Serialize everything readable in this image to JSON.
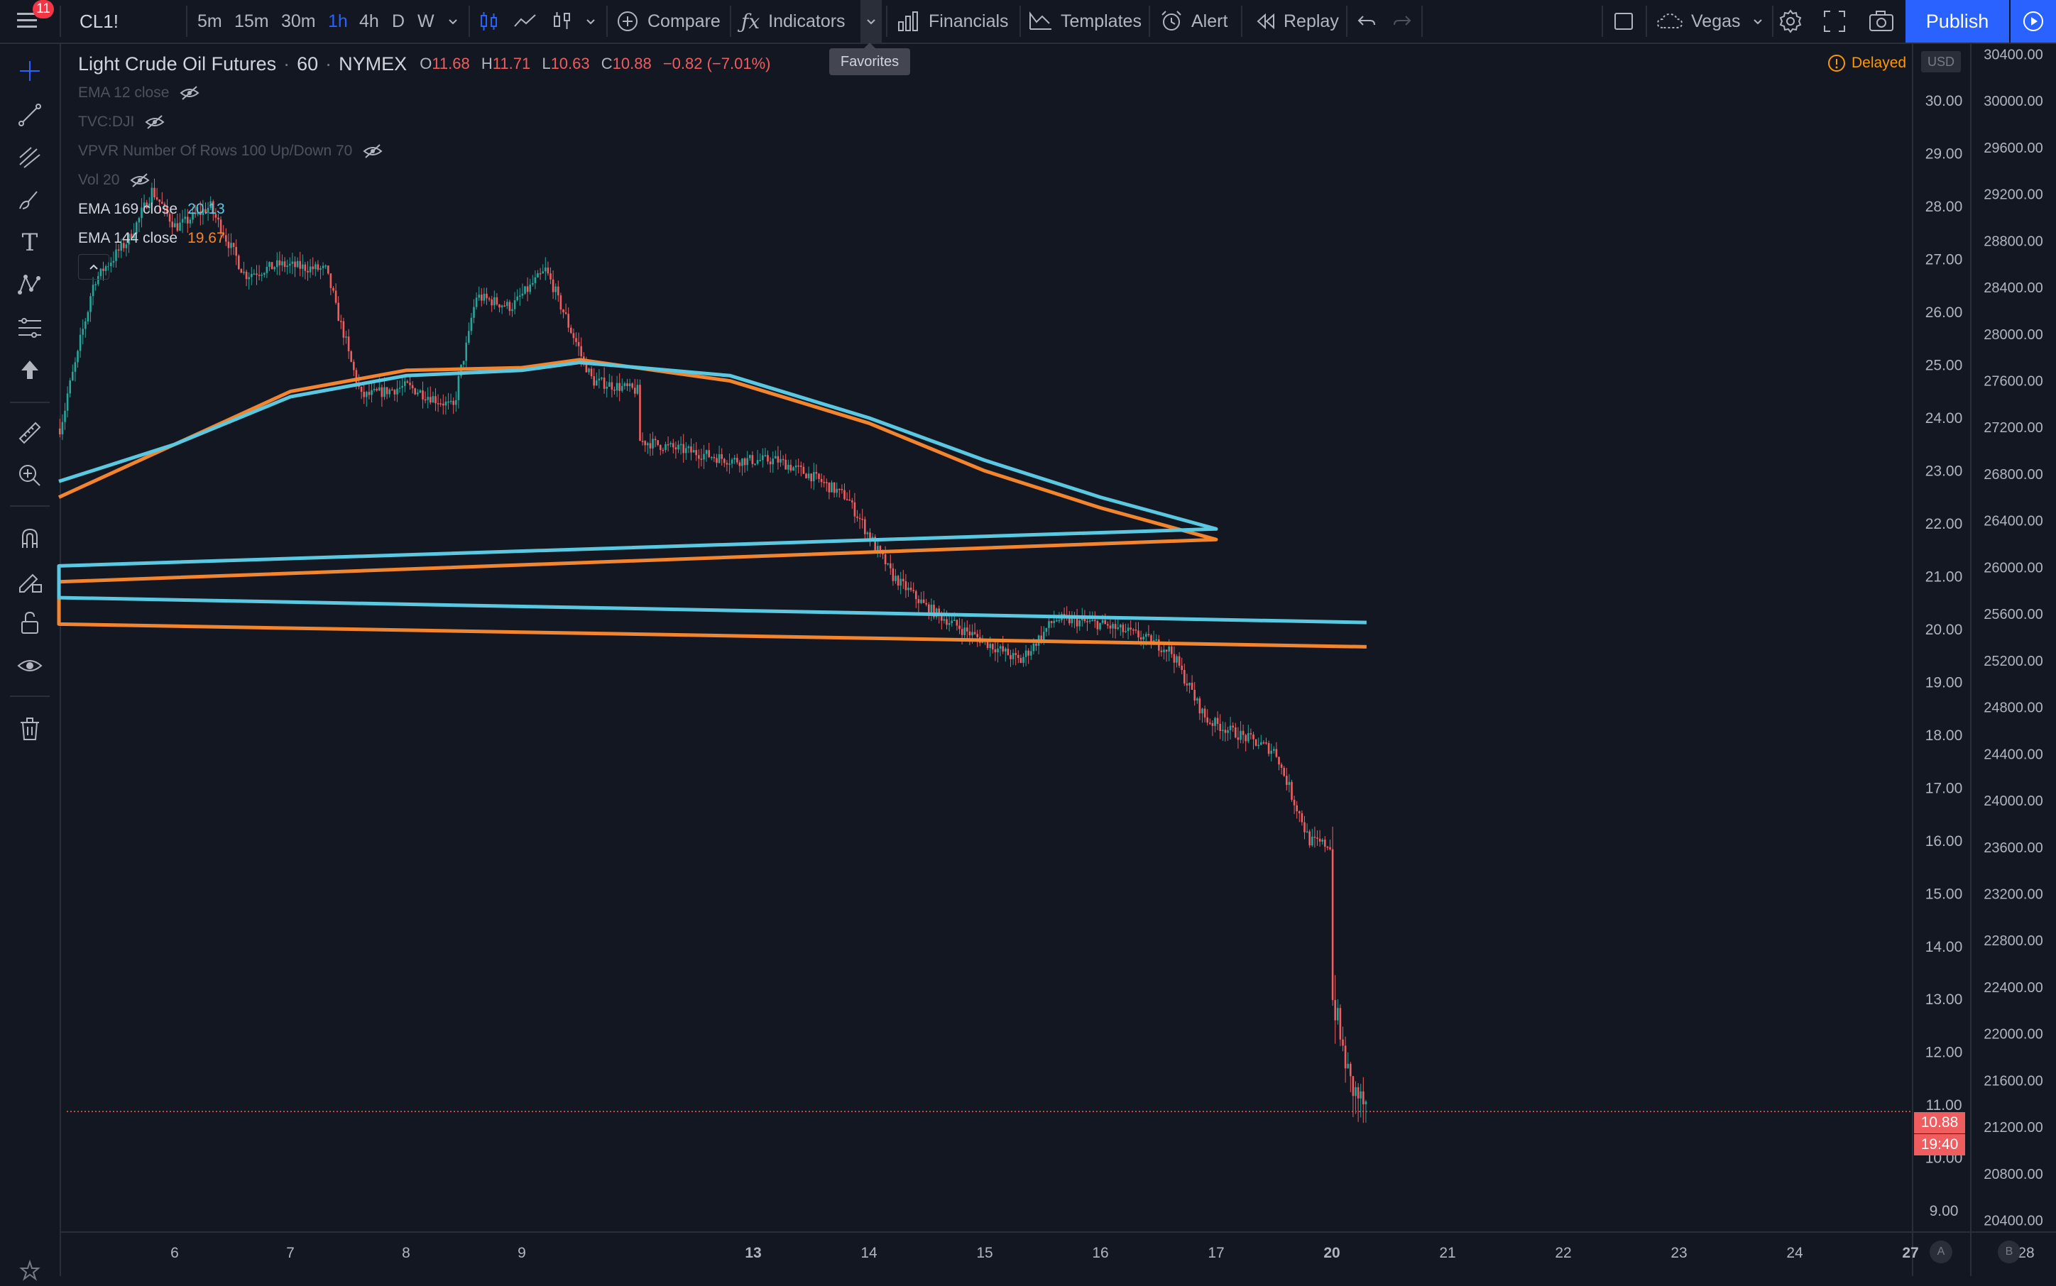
{
  "toolbar": {
    "notification_count": "11",
    "symbol": "CL1!",
    "intervals": [
      {
        "label": "5m",
        "active": false
      },
      {
        "label": "15m",
        "active": false
      },
      {
        "label": "30m",
        "active": false
      },
      {
        "label": "1h",
        "active": true
      },
      {
        "label": "4h",
        "active": false
      },
      {
        "label": "D",
        "active": false
      },
      {
        "label": "W",
        "active": false
      }
    ],
    "compare_label": "Compare",
    "indicators_label": "Indicators",
    "favorites_tooltip": "Favorites",
    "financials_label": "Financials",
    "templates_label": "Templates",
    "alert_label": "Alert",
    "replay_label": "Replay",
    "layout_name": "Vegas",
    "publish_label": "Publish"
  },
  "legend": {
    "title": "Light Crude Oil Futures",
    "interval": "60",
    "exchange": "NYMEX",
    "open": "11.68",
    "high": "11.71",
    "low": "10.63",
    "close": "10.88",
    "change": "−0.82 (−7.01%)",
    "indicators": [
      {
        "name": "EMA 12 close",
        "value": "",
        "hidden": true
      },
      {
        "name": "TVC:DJI",
        "value": "",
        "hidden": true
      },
      {
        "name": "VPVR Number Of Rows 100 Up/Down 70",
        "value": "",
        "hidden": true
      },
      {
        "name": "Vol 20",
        "value": "",
        "hidden": true
      },
      {
        "name": "EMA 169 close",
        "value": "20.13",
        "hidden": false,
        "color": "#5ac8e0"
      },
      {
        "name": "EMA 144 close",
        "value": "19.67",
        "hidden": false,
        "color": "#f2852e"
      }
    ]
  },
  "status": {
    "delayed_label": "Delayed",
    "currency": "USD",
    "last_price_tag": "10.88",
    "countdown_tag": "19:40"
  },
  "bottom_buttons": [
    "A",
    "B"
  ],
  "colors": {
    "background": "#131722",
    "up_candle": "#26a69a",
    "down_candle": "#f05d5e",
    "ema169": "#5ac8e0",
    "ema144": "#f2852e",
    "accent": "#2962ff"
  },
  "chart_data": {
    "type": "candlestick",
    "title": "Light Crude Oil Futures · 60 · NYMEX",
    "price_axis": {
      "ticks": [
        "30.00",
        "29.00",
        "28.00",
        "27.00",
        "26.00",
        "25.00",
        "24.00",
        "23.00",
        "22.00",
        "21.00",
        "20.00",
        "19.00",
        "18.00",
        "17.00",
        "16.00",
        "15.00",
        "14.00",
        "13.00",
        "12.00",
        "11.00",
        "10.00",
        "9.00"
      ],
      "range": [
        8.6,
        31.1
      ]
    },
    "secondary_axis": {
      "ticks": [
        "30400.00",
        "30000.00",
        "29600.00",
        "29200.00",
        "28800.00",
        "28400.00",
        "28000.00",
        "27600.00",
        "27200.00",
        "26800.00",
        "26400.00",
        "26000.00",
        "25600.00",
        "25200.00",
        "24800.00",
        "24400.00",
        "24000.00",
        "23600.00",
        "23200.00",
        "22800.00",
        "22400.00",
        "22000.00",
        "21600.00",
        "21200.00",
        "20800.00",
        "20400.00"
      ],
      "range": [
        20300,
        30500
      ]
    },
    "time_axis": {
      "ticks": [
        "6",
        "7",
        "8",
        "9",
        "13",
        "14",
        "15",
        "16",
        "17",
        "20",
        "21",
        "22",
        "23",
        "24",
        "27",
        "28"
      ],
      "ticks_bold": [
        "13",
        "20",
        "27"
      ]
    },
    "price_path": [
      {
        "t": 5.0,
        "p": 23.8
      },
      {
        "t": 5.3,
        "p": 26.6
      },
      {
        "t": 5.6,
        "p": 27.4
      },
      {
        "t": 5.8,
        "p": 28.3
      },
      {
        "t": 6.0,
        "p": 27.6
      },
      {
        "t": 6.3,
        "p": 28.0
      },
      {
        "t": 6.6,
        "p": 26.7
      },
      {
        "t": 6.9,
        "p": 26.9
      },
      {
        "t": 7.3,
        "p": 26.8
      },
      {
        "t": 7.6,
        "p": 24.4
      },
      {
        "t": 8.0,
        "p": 24.6
      },
      {
        "t": 8.4,
        "p": 24.2
      },
      {
        "t": 8.6,
        "p": 26.3
      },
      {
        "t": 8.9,
        "p": 26.1
      },
      {
        "t": 9.2,
        "p": 26.8
      },
      {
        "t": 9.6,
        "p": 24.7
      },
      {
        "t": 12.8,
        "p": 23.2
      },
      {
        "t": 13.2,
        "p": 23.2
      },
      {
        "t": 13.5,
        "p": 22.9
      },
      {
        "t": 13.8,
        "p": 22.5
      },
      {
        "t": 14.2,
        "p": 21.0
      },
      {
        "t": 14.5,
        "p": 20.4
      },
      {
        "t": 14.8,
        "p": 20.0
      },
      {
        "t": 15.3,
        "p": 19.4
      },
      {
        "t": 15.6,
        "p": 20.2
      },
      {
        "t": 16.0,
        "p": 20.1
      },
      {
        "t": 16.3,
        "p": 19.9
      },
      {
        "t": 16.6,
        "p": 19.6
      },
      {
        "t": 16.9,
        "p": 18.3
      },
      {
        "t": 17.2,
        "p": 18.0
      },
      {
        "t": 17.5,
        "p": 17.7
      },
      {
        "t": 17.8,
        "p": 16.0
      },
      {
        "t": 19.8,
        "p": 15.0
      },
      {
        "t": 20.0,
        "p": 13.0
      },
      {
        "t": 20.15,
        "p": 11.4
      },
      {
        "t": 20.3,
        "p": 10.88
      }
    ],
    "ema169": [
      {
        "t": 5.0,
        "p": 22.8
      },
      {
        "t": 6.0,
        "p": 23.5
      },
      {
        "t": 7.0,
        "p": 24.4
      },
      {
        "t": 8.0,
        "p": 24.8
      },
      {
        "t": 9.0,
        "p": 24.9
      },
      {
        "t": 9.5,
        "p": 25.05
      },
      {
        "t": 12.8,
        "p": 24.8
      },
      {
        "t": 14.0,
        "p": 24.0
      },
      {
        "t": 15.0,
        "p": 23.2
      },
      {
        "t": 16.0,
        "p": 22.5
      },
      {
        "t": 17.0,
        "p": 21.9
      },
      {
        "t": 18.0,
        "p": 21.2
      },
      {
        "t": 19.0,
        "p": 20.8
      },
      {
        "t": 19.8,
        "p": 20.6
      },
      {
        "t": 20.3,
        "p": 20.13
      }
    ],
    "ema144": [
      {
        "t": 5.0,
        "p": 22.5
      },
      {
        "t": 6.0,
        "p": 23.5
      },
      {
        "t": 7.0,
        "p": 24.5
      },
      {
        "t": 8.0,
        "p": 24.9
      },
      {
        "t": 9.0,
        "p": 24.95
      },
      {
        "t": 9.5,
        "p": 25.1
      },
      {
        "t": 12.8,
        "p": 24.7
      },
      {
        "t": 14.0,
        "p": 23.9
      },
      {
        "t": 15.0,
        "p": 23.0
      },
      {
        "t": 16.0,
        "p": 22.3
      },
      {
        "t": 17.0,
        "p": 21.7
      },
      {
        "t": 18.0,
        "p": 20.9
      },
      {
        "t": 19.0,
        "p": 20.4
      },
      {
        "t": 19.8,
        "p": 20.1
      },
      {
        "t": 20.3,
        "p": 19.67
      }
    ],
    "last_price": 10.88
  }
}
